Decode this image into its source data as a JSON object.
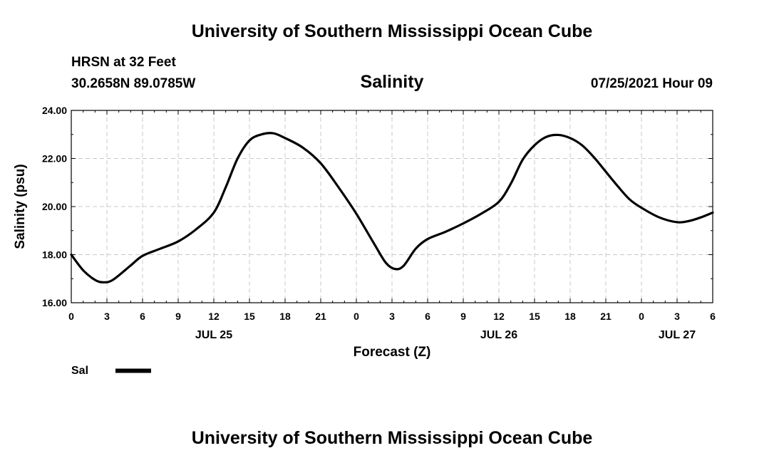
{
  "header": {
    "top_title": "University of Southern Mississippi Ocean Cube",
    "station": "HRSN at 32 Feet",
    "coords": "30.2658N  89.0785W",
    "variable": "Salinity",
    "datetime": "07/25/2021 Hour 09",
    "bottom_title": "University of Southern Mississippi Ocean Cube"
  },
  "legend": {
    "label": "Sal",
    "color": "#000000"
  },
  "chart_data": {
    "type": "line",
    "title": "Salinity",
    "xlabel": "Forecast (Z)",
    "ylabel": "Salinity (psu)",
    "xlim": [
      0,
      54
    ],
    "ylim": [
      16.0,
      24.0
    ],
    "x_ticks": [
      0,
      3,
      6,
      9,
      12,
      15,
      18,
      21,
      24,
      27,
      30,
      33,
      36,
      39,
      42,
      45,
      48,
      51,
      54
    ],
    "x_tick_labels": [
      "0",
      "3",
      "6",
      "9",
      "12",
      "15",
      "18",
      "21",
      "0",
      "3",
      "6",
      "9",
      "12",
      "15",
      "18",
      "21",
      "0",
      "3",
      "6"
    ],
    "day_labels": [
      {
        "x": 12,
        "label": "JUL 25"
      },
      {
        "x": 36,
        "label": "JUL 26"
      },
      {
        "x": 51,
        "label": "JUL 27"
      }
    ],
    "y_ticks": [
      16.0,
      18.0,
      20.0,
      22.0,
      24.0
    ],
    "y_tick_labels": [
      "16.00",
      "18.00",
      "20.00",
      "22.00",
      "24.00"
    ],
    "grid": true,
    "series": [
      {
        "name": "Sal",
        "x": [
          0,
          1,
          2,
          2.7,
          3.5,
          5,
          6,
          7.5,
          9,
          10.5,
          12,
          13,
          14,
          15,
          16,
          17,
          18,
          19.5,
          21,
          22.5,
          24,
          25.5,
          26.5,
          27.3,
          28,
          29,
          30,
          31.5,
          33,
          34.5,
          36,
          37,
          38,
          39,
          40,
          41,
          42,
          43,
          44,
          45,
          46,
          47,
          48,
          49.5,
          51,
          52,
          53,
          54
        ],
        "y": [
          18.0,
          17.35,
          16.95,
          16.85,
          16.95,
          17.55,
          17.95,
          18.25,
          18.55,
          19.05,
          19.75,
          20.8,
          22.0,
          22.75,
          23.0,
          23.05,
          22.85,
          22.45,
          21.8,
          20.8,
          19.7,
          18.45,
          17.65,
          17.4,
          17.55,
          18.25,
          18.65,
          18.95,
          19.3,
          19.7,
          20.2,
          20.95,
          21.95,
          22.55,
          22.9,
          22.98,
          22.85,
          22.55,
          22.05,
          21.45,
          20.85,
          20.3,
          19.95,
          19.55,
          19.35,
          19.4,
          19.55,
          19.75
        ]
      }
    ]
  }
}
